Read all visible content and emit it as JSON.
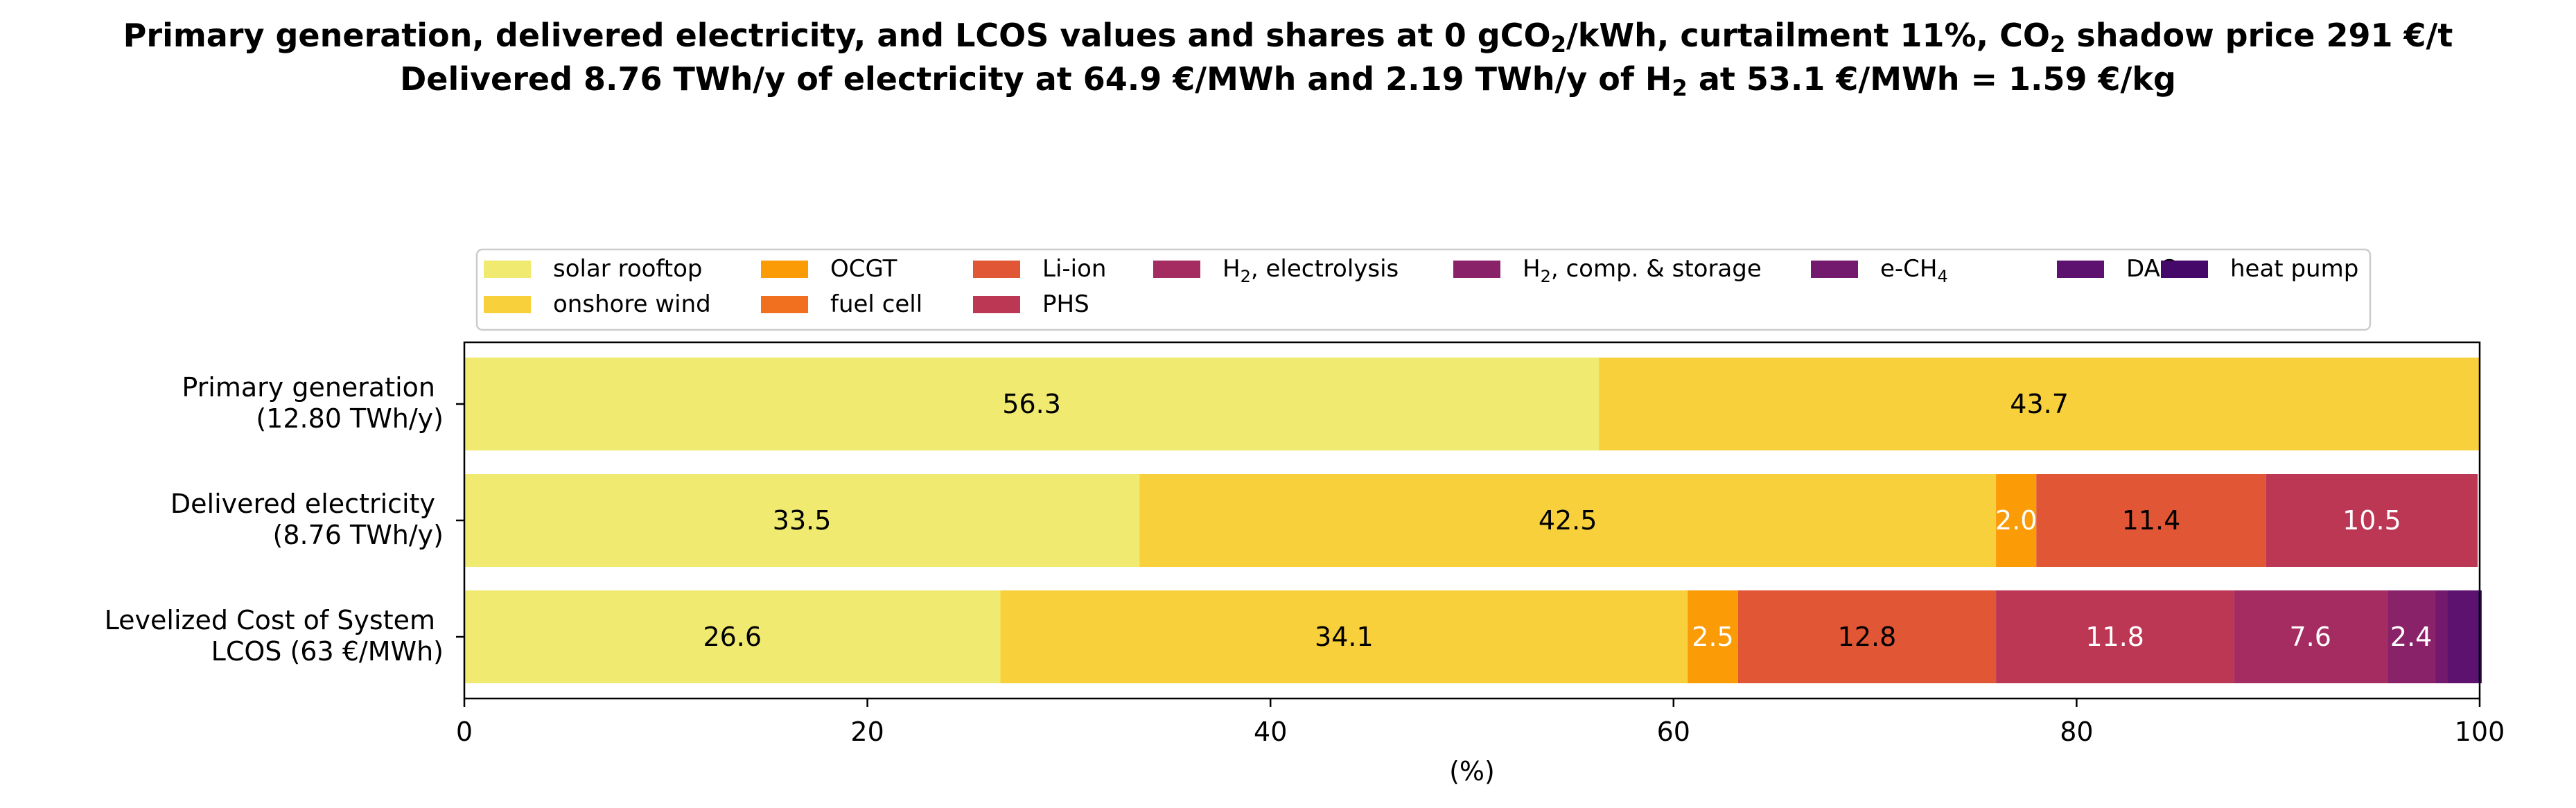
{
  "chart_data": {
    "type": "bar",
    "orientation": "horizontal",
    "stacked": true,
    "title_line1": {
      "a": "Primary generation, delivered electricity, and LCOS values and shares at 0 gCO",
      "b": "2",
      "c": "/kWh, curtailment 11%, CO",
      "d": "2",
      "e": " shadow price 291 €/t"
    },
    "title_line2": {
      "a": "Delivered 8.76 TWh/y of electricity at 64.9 €/MWh and 2.19 TWh/y of H",
      "b": "2",
      "c": " at 53.1 €/MWh = 1.59 €/kg"
    },
    "xlabel": "(%)",
    "xlim": [
      0,
      100
    ],
    "xticks": [
      0,
      20,
      40,
      60,
      80,
      100
    ],
    "grid": false,
    "legend_position": "top",
    "categories": [
      [
        "Primary generation",
        "(12.80 TWh/y)"
      ],
      [
        "Delivered electricity",
        "(8.76 TWh/y)"
      ],
      [
        "Levelized Cost of System",
        "LCOS  (63 €/MWh)"
      ]
    ],
    "series": [
      {
        "name": "solar rooftop",
        "color": "#f0ea70",
        "values": [
          56.3,
          33.5,
          26.6
        ],
        "label_color": "#000000"
      },
      {
        "name": "onshore wind",
        "color": "#f7d03c",
        "values": [
          43.7,
          42.5,
          34.1
        ],
        "label_color": "#000000"
      },
      {
        "name": "OCGT",
        "color": "#fb9b06",
        "values": [
          0,
          2.0,
          2.5
        ],
        "label_color": "#ffffff"
      },
      {
        "name": "fuel cell",
        "color": "#f17020",
        "values": [
          0,
          0,
          0
        ],
        "label_color": "#000000"
      },
      {
        "name": "Li-ion",
        "color": "#e15635",
        "values": [
          0,
          11.4,
          12.8
        ],
        "label_color": "#000000"
      },
      {
        "name": "PHS",
        "color": "#bc3754",
        "values": [
          0,
          10.5,
          11.8
        ],
        "label_color": "#ffffff"
      },
      {
        "name": "H2, electrolysis",
        "name_main": "H",
        "name_sub": "2",
        "name_rest": ", electrolysis",
        "color": "#a52c60",
        "values": [
          0,
          0,
          7.6
        ],
        "label_color": "#ffffff"
      },
      {
        "name": "H2, comp. & storage",
        "name_main": "H",
        "name_sub": "2",
        "name_rest": ", comp. & storage",
        "color": "#8a226a",
        "values": [
          0,
          0,
          2.4
        ],
        "label_color": "#ffffff"
      },
      {
        "name": "e-CH4",
        "name_main": "e-CH",
        "name_sub": "4",
        "name_rest": "",
        "color": "#741a6e",
        "values": [
          0,
          0,
          0.6
        ],
        "label_color": "#ffffff"
      },
      {
        "name": "DAC",
        "color": "#5c126e",
        "values": [
          0,
          0,
          1.5
        ],
        "label_color": "#ffffff"
      },
      {
        "name": "heat pump",
        "color": "#450a69",
        "values": [
          0,
          0,
          0.2
        ],
        "label_color": "#ffffff"
      }
    ]
  }
}
